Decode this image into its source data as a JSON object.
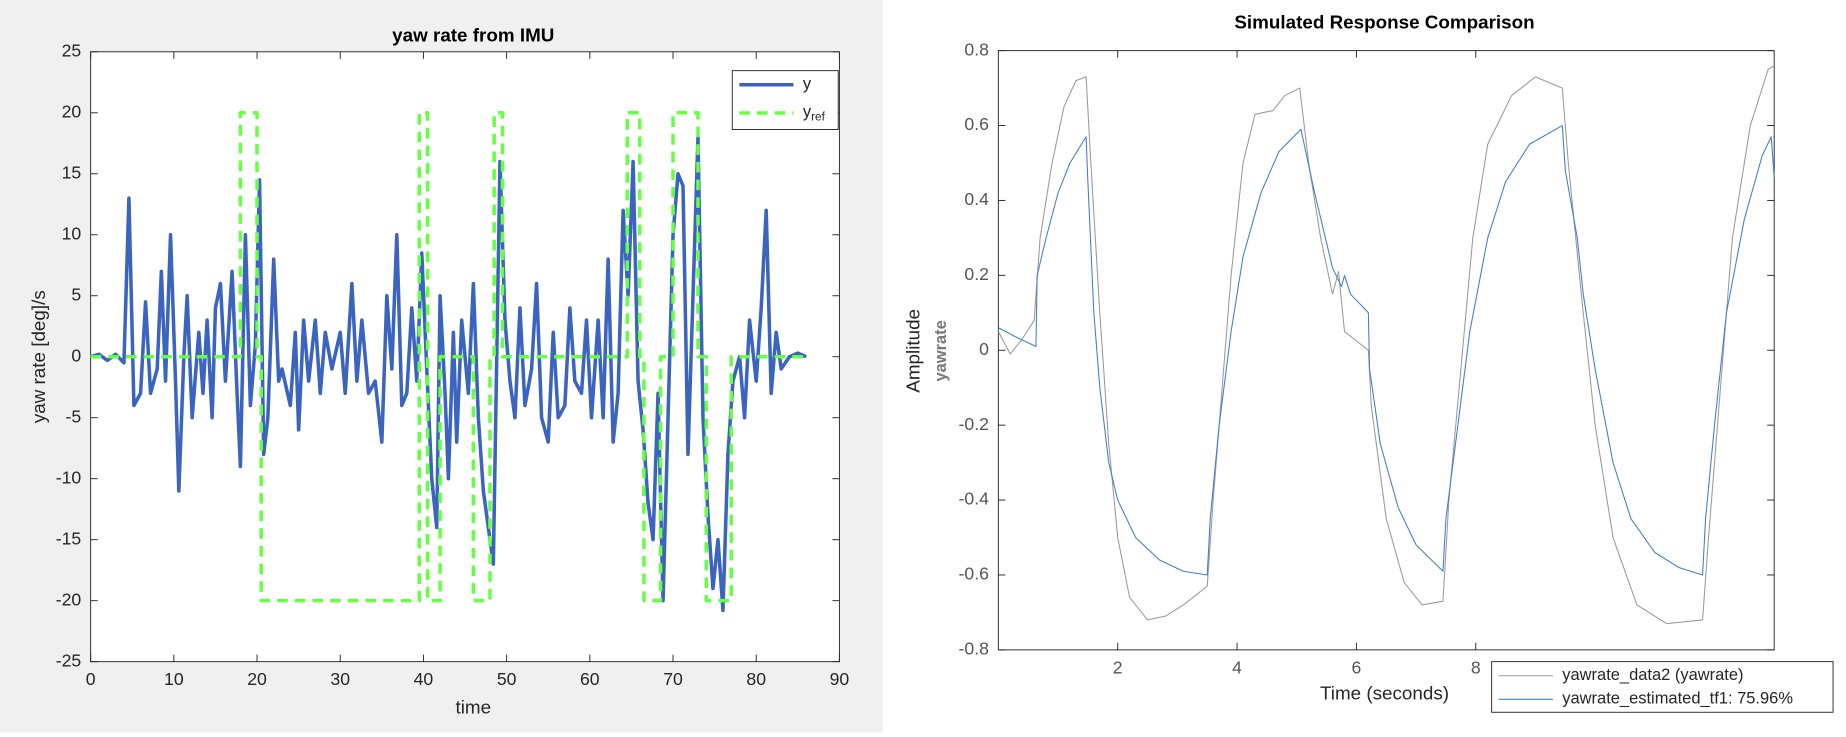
{
  "chart_data": [
    {
      "type": "line",
      "title": "yaw rate from IMU",
      "xlabel": "time",
      "ylabel": "yaw rate [deg]/s",
      "xlim": [
        0,
        90
      ],
      "ylim": [
        -25,
        25
      ],
      "xticks": [
        0,
        10,
        20,
        30,
        40,
        50,
        60,
        70,
        80,
        90
      ],
      "yticks": [
        -25,
        -20,
        -15,
        -10,
        -5,
        0,
        5,
        10,
        15,
        20,
        25
      ],
      "legend": "upper right",
      "grid": false,
      "series": [
        {
          "name": "y",
          "color": "#3a64c0",
          "style": "solid",
          "x": [
            0,
            1,
            2,
            3,
            4,
            4.6,
            5.2,
            6,
            6.6,
            7.2,
            8,
            8.5,
            9,
            9.6,
            10.2,
            10.6,
            11.2,
            11.6,
            12.2,
            13,
            13.5,
            14,
            14.6,
            15,
            15.6,
            16.2,
            17,
            17.6,
            18,
            18.6,
            19.2,
            19.8,
            20.3,
            20.8,
            21.3,
            22,
            22.6,
            23,
            24,
            24.6,
            25,
            25.6,
            26.2,
            27,
            27.6,
            28.2,
            29,
            30,
            30.6,
            31.4,
            32,
            32.6,
            33.4,
            34.2,
            35,
            35.6,
            36.2,
            36.8,
            37.4,
            38,
            38.6,
            39.2,
            39.8,
            40.4,
            41,
            41.6,
            42,
            42.6,
            43,
            43.6,
            44,
            44.6,
            45.4,
            46,
            46.6,
            47.2,
            47.8,
            48.4,
            49.2,
            49.8,
            50.4,
            51,
            51.6,
            52.2,
            53,
            53.6,
            54.2,
            55,
            55.6,
            56.2,
            57,
            57.6,
            58.2,
            59,
            59.6,
            60.2,
            61,
            61.6,
            62.2,
            62.8,
            63.4,
            64,
            64.6,
            65.2,
            65.8,
            66.4,
            67,
            67.6,
            68.2,
            68.8,
            69.4,
            70,
            70.6,
            71.2,
            71.8,
            72.4,
            73,
            73.6,
            74.2,
            74.8,
            75.4,
            76,
            76.6,
            77.2,
            78,
            78.6,
            79.2,
            80,
            80.6,
            81.2,
            81.8,
            82.4,
            83,
            84,
            85,
            86
          ],
          "values": [
            0,
            0.2,
            -0.3,
            0.2,
            -0.5,
            13,
            -4,
            -3,
            4.5,
            -3,
            -1,
            7,
            -2,
            10,
            -2,
            -11,
            0,
            5,
            -5,
            2,
            -3,
            3,
            -5,
            4,
            6,
            -2,
            7,
            -3,
            -9,
            10,
            -4,
            1,
            14.5,
            -8,
            -5,
            8,
            -2,
            -1,
            -4,
            2,
            -6,
            3,
            -2,
            3,
            -3,
            2,
            -1,
            2,
            -3,
            6,
            -2,
            3,
            -3,
            -2,
            -7,
            5,
            -1,
            10,
            -4,
            -3,
            4,
            -2,
            8.5,
            -1,
            -10,
            -14,
            5,
            -3,
            -10,
            2,
            -7,
            3,
            -3,
            6,
            -5,
            -11,
            -14,
            -17,
            16,
            3,
            -2,
            -5,
            4,
            -4,
            -1,
            6,
            -5,
            -7,
            2,
            -5,
            -4,
            4,
            -2,
            -3,
            3,
            -5,
            3,
            -5,
            8,
            -7,
            -3,
            12,
            5,
            16,
            -2,
            -6,
            -12,
            -15,
            -3,
            -20,
            -5,
            10,
            15,
            14,
            -8,
            5,
            18,
            -5,
            -13,
            -19,
            -15,
            -20.8,
            -8,
            -2,
            0,
            -5,
            3,
            -2,
            4,
            12,
            -3,
            2,
            -1,
            0,
            0.3,
            0
          ]
        },
        {
          "name": "y_{ref}",
          "color": "#66ff44",
          "style": "dashed",
          "x": [
            0,
            18,
            18,
            20,
            20,
            20.5,
            20.5,
            39.5,
            39.5,
            40.5,
            40.5,
            42,
            42,
            46,
            46,
            48,
            48,
            48.5,
            48.5,
            49.5,
            49.5,
            64.5,
            64.5,
            66,
            66,
            66.5,
            66.5,
            68.5,
            68.5,
            70,
            70,
            73,
            73,
            74,
            74,
            77,
            77,
            86
          ],
          "values": [
            0,
            0,
            20,
            20,
            0,
            0,
            -20,
            -20,
            20,
            20,
            -20,
            -20,
            0,
            0,
            -20,
            -20,
            0,
            0,
            20,
            20,
            0,
            0,
            20,
            20,
            0,
            0,
            -20,
            -20,
            0,
            0,
            20,
            20,
            0,
            0,
            -20,
            -20,
            0,
            0
          ]
        }
      ]
    },
    {
      "type": "line",
      "title": "Simulated Response Comparison",
      "xlabel": "Time (seconds)",
      "ylabel": "Amplitude",
      "ylabel_sub": "yawrate",
      "xlim": [
        0,
        13
      ],
      "ylim": [
        -0.8,
        0.8
      ],
      "xticks": [
        2,
        4,
        6,
        8
      ],
      "yticks": [
        -0.8,
        -0.6,
        -0.4,
        -0.2,
        0,
        0.2,
        0.4,
        0.6,
        0.8
      ],
      "legend": "lower right",
      "grid": false,
      "series": [
        {
          "name": "yawrate_data2 (yawrate)",
          "color": "#9a9a9a",
          "style": "solid",
          "x": [
            0,
            0.2,
            0.4,
            0.6,
            0.7,
            0.9,
            1.1,
            1.3,
            1.47,
            1.55,
            1.7,
            1.85,
            2.0,
            2.2,
            2.5,
            2.8,
            3.1,
            3.5,
            3.6,
            3.75,
            3.9,
            4.1,
            4.3,
            4.6,
            4.8,
            5.05,
            5.2,
            5.4,
            5.6,
            5.7,
            5.8,
            6.2,
            6.25,
            6.5,
            6.8,
            7.1,
            7.45,
            7.55,
            7.75,
            7.95,
            8.2,
            8.6,
            9.0,
            9.45,
            9.55,
            9.8,
            10.0,
            10.3,
            10.7,
            11.2,
            11.8,
            11.9,
            12.1,
            12.3,
            12.6,
            12.9,
            13.0
          ],
          "values": [
            0.05,
            -0.01,
            0.03,
            0.08,
            0.3,
            0.5,
            0.65,
            0.72,
            0.73,
            0.5,
            0.1,
            -0.25,
            -0.5,
            -0.66,
            -0.72,
            -0.71,
            -0.68,
            -0.63,
            -0.4,
            -0.1,
            0.2,
            0.5,
            0.63,
            0.64,
            0.68,
            0.7,
            0.5,
            0.3,
            0.15,
            0.21,
            0.05,
            0.0,
            -0.15,
            -0.45,
            -0.62,
            -0.68,
            -0.67,
            -0.4,
            -0.05,
            0.3,
            0.55,
            0.68,
            0.73,
            0.7,
            0.5,
            0.1,
            -0.2,
            -0.5,
            -0.68,
            -0.73,
            -0.72,
            -0.5,
            -0.1,
            0.3,
            0.6,
            0.75,
            0.76
          ]
        },
        {
          "name": "yawrate_estimated_tf1: 75.96%",
          "color": "#3d7fd6",
          "style": "solid",
          "x": [
            0,
            0.3,
            0.63,
            0.65,
            0.8,
            1.0,
            1.2,
            1.47,
            1.5,
            1.6,
            1.7,
            1.85,
            2.0,
            2.3,
            2.7,
            3.1,
            3.5,
            3.55,
            3.7,
            3.9,
            4.1,
            4.4,
            4.7,
            5.07,
            5.3,
            5.6,
            5.75,
            5.8,
            5.9,
            6.2,
            6.22,
            6.4,
            6.7,
            7.0,
            7.45,
            7.5,
            7.7,
            7.9,
            8.2,
            8.5,
            8.9,
            9.45,
            9.5,
            9.7,
            9.8,
            10.0,
            10.3,
            10.6,
            11.0,
            11.4,
            11.8,
            11.85,
            12.0,
            12.2,
            12.5,
            12.8,
            12.95,
            13.0
          ],
          "values": [
            0.06,
            0.035,
            0.01,
            0.2,
            0.3,
            0.42,
            0.5,
            0.57,
            0.45,
            0.1,
            -0.1,
            -0.3,
            -0.4,
            -0.5,
            -0.56,
            -0.59,
            -0.6,
            -0.45,
            -0.2,
            0.05,
            0.25,
            0.42,
            0.53,
            0.59,
            0.42,
            0.22,
            0.17,
            0.2,
            0.15,
            0.1,
            -0.05,
            -0.25,
            -0.42,
            -0.52,
            -0.59,
            -0.45,
            -0.2,
            0.05,
            0.3,
            0.45,
            0.55,
            0.6,
            0.48,
            0.3,
            0.15,
            -0.05,
            -0.3,
            -0.45,
            -0.54,
            -0.58,
            -0.6,
            -0.45,
            -0.2,
            0.1,
            0.35,
            0.52,
            0.57,
            0.46
          ]
        }
      ]
    }
  ]
}
